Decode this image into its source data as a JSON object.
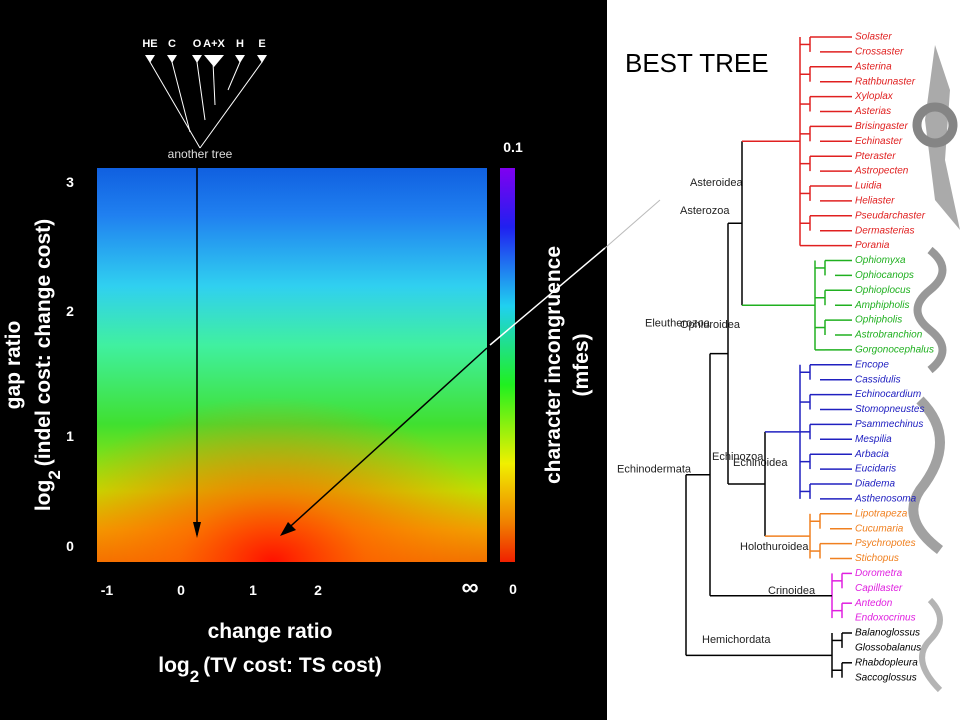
{
  "left": {
    "small_tree": {
      "labels": [
        "HE",
        "C",
        "O",
        "A+X",
        "H",
        "E"
      ],
      "caption": "another tree"
    },
    "x_ticks": [
      "-1",
      "0",
      "1",
      "2",
      "∞"
    ],
    "y_ticks": [
      "3",
      "2",
      "1",
      "0"
    ],
    "colorbar": {
      "top": "0.1",
      "bottom": "0",
      "label_line1": "character incongruence",
      "label_line2": "(mfes)"
    },
    "x_label": {
      "line1": "change ratio",
      "log": "log",
      "sub": "2",
      "rest": "(TV cost: TS cost)"
    },
    "y_label": {
      "line1": "gap ratio",
      "log": "log",
      "sub": "2",
      "rest": "(indel cost: change cost)"
    }
  },
  "tree": {
    "title": "BEST TREE",
    "clades": {
      "asterozoa": "Asterozoa",
      "eleutherozoa": "Eleutherozoa",
      "echinozoa": "Echinozoa",
      "echinodermata": "Echinodermata"
    },
    "groups": [
      {
        "name": "Asteroidea",
        "color": "#e02020",
        "taxa": [
          "Solaster",
          "Crossaster",
          "Asterina",
          "Rathbunaster",
          "Xyloplax",
          "Asterias",
          "Brisingaster",
          "Echinaster",
          "Pteraster",
          "Astropecten",
          "Luidia",
          "Heliaster",
          "Pseudarchaster",
          "Dermasterias",
          "Porania"
        ]
      },
      {
        "name": "Ophiuroidea",
        "color": "#20b020",
        "taxa": [
          "Ophiomyxa",
          "Ophiocanops",
          "Ophioplocus",
          "Amphipholis",
          "Ophipholis",
          "Astrobranchion",
          "Gorgonocephalus"
        ]
      },
      {
        "name": "Echinoidea",
        "color": "#2020c0",
        "taxa": [
          "Encope",
          "Cassidulis",
          "Echinocardium",
          "Stomopneustes",
          "Psammechinus",
          "Mespilia",
          "Arbacia",
          "Eucidaris",
          "Diadema",
          "Asthenosoma"
        ]
      },
      {
        "name": "Holothuroidea",
        "color": "#f08020",
        "taxa": [
          "Lipotrapeza",
          "Cucumaria",
          "Psychropotes",
          "Stichopus"
        ]
      },
      {
        "name": "Crinoidea",
        "color": "#e020e0",
        "taxa": [
          "Dorometra",
          "Capillaster",
          "Antedon",
          "Endoxocrinus"
        ]
      },
      {
        "name": "Hemichordata",
        "color": "#000000",
        "taxa": [
          "Balanoglossus",
          "Glossobalanus",
          "Rhabdopleura",
          "Saccoglossus"
        ]
      }
    ]
  }
}
